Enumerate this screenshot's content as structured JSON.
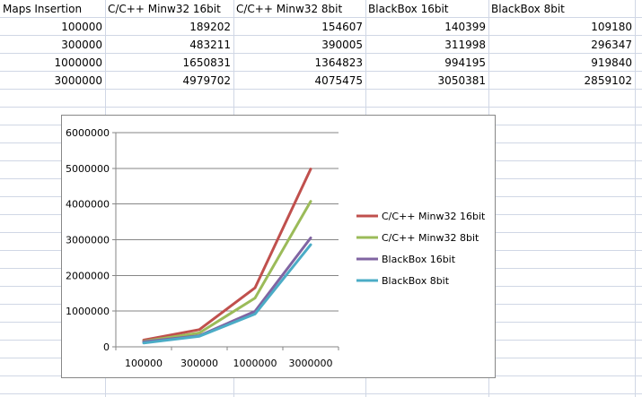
{
  "sheet": {
    "header": [
      "Maps Insertion",
      "C/C++ Minw32 16bit",
      "C/C++ Minw32 8bit",
      "BlackBox 16bit",
      "BlackBox 8bit"
    ],
    "rows": [
      [
        "100000",
        "189202",
        "154607",
        "140399",
        "109180"
      ],
      [
        "300000",
        "483211",
        "390005",
        "311998",
        "296347"
      ],
      [
        "1000000",
        "1650831",
        "1364823",
        "994195",
        "919840"
      ],
      [
        "3000000",
        "4979702",
        "4075475",
        "3050381",
        "2859102"
      ]
    ]
  },
  "chart_data": {
    "type": "line",
    "categories": [
      "100000",
      "300000",
      "1000000",
      "3000000"
    ],
    "ylim": [
      0,
      6000000
    ],
    "yticks": [
      "0",
      "1000000",
      "2000000",
      "3000000",
      "4000000",
      "5000000",
      "6000000"
    ],
    "grid": true,
    "legend_position": "right",
    "series": [
      {
        "name": "C/C++ Minw32 16bit",
        "color": "#c0504d",
        "values": [
          189202,
          483211,
          1650831,
          4979702
        ]
      },
      {
        "name": "C/C++ Minw32 8bit",
        "color": "#9bbb59",
        "values": [
          154607,
          390005,
          1364823,
          4075475
        ]
      },
      {
        "name": "BlackBox 16bit",
        "color": "#8064a2",
        "values": [
          140399,
          311998,
          994195,
          3050381
        ]
      },
      {
        "name": "BlackBox 8bit",
        "color": "#4bacc6",
        "values": [
          109180,
          296347,
          919840,
          2859102
        ]
      }
    ]
  }
}
